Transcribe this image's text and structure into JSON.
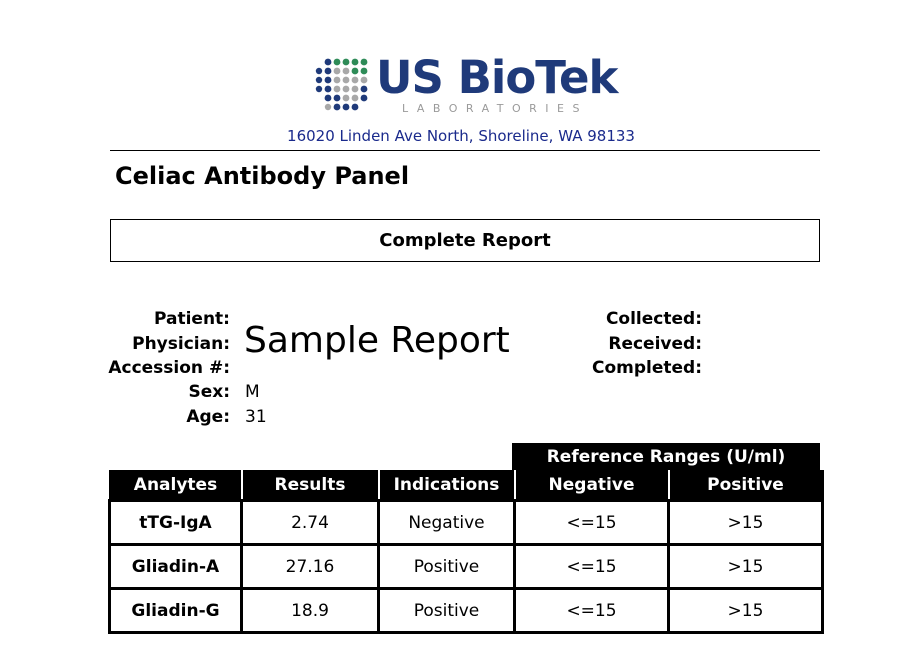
{
  "header": {
    "logo_name": "US BioTek",
    "logo_sub": "LABORATORIES",
    "address": "16020 Linden Ave North, Shoreline, WA 98133",
    "colors": {
      "brand_navy": "#1f3a7a",
      "brand_green": "#2e8b57",
      "address_blue": "#1a2a8c"
    }
  },
  "panel_title": "Celiac Antibody Panel",
  "report_type": "Complete Report",
  "patient_info": {
    "patient_label": "Patient:",
    "physician_label": "Physician:",
    "accession_label": "Accession #:",
    "sex_label": "Sex:",
    "sex": "M",
    "age_label": "Age:",
    "age": "31",
    "sample_name": "Sample Report",
    "collected_label": "Collected:",
    "received_label": "Received:",
    "completed_label": "Completed:"
  },
  "results_table": {
    "reference_header": "Reference Ranges (U/ml)",
    "columns": [
      "Analytes",
      "Results",
      "Indications",
      "Negative",
      "Positive"
    ],
    "rows": [
      {
        "analyte": "tTG-IgA",
        "result": "2.74",
        "indication": "Negative",
        "negative": "<=15",
        "positive": ">15"
      },
      {
        "analyte": "Gliadin-A",
        "result": "27.16",
        "indication": "Positive",
        "negative": "<=15",
        "positive": ">15"
      },
      {
        "analyte": "Gliadin-G",
        "result": "18.9",
        "indication": "Positive",
        "negative": "<=15",
        "positive": ">15"
      }
    ]
  }
}
